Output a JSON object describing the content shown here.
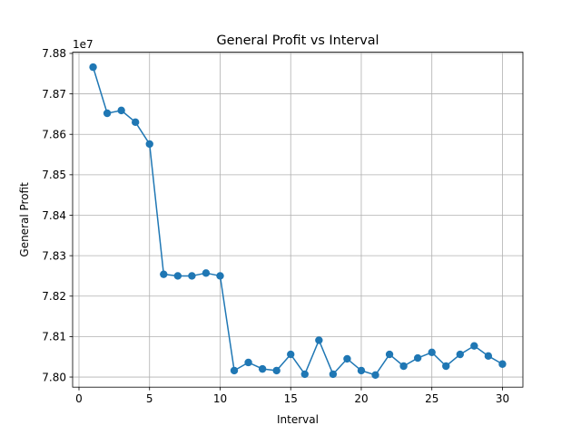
{
  "chart_data": {
    "type": "line",
    "title": "General Profit vs Interval",
    "xlabel": "Interval",
    "ylabel": "General Profit",
    "offset_label": "1e7",
    "xlim": [
      -0.45,
      31.45
    ],
    "ylim": [
      7.7975,
      7.8803
    ],
    "xticks": [
      0,
      5,
      10,
      15,
      20,
      25,
      30
    ],
    "xtick_labels": [
      "0",
      "5",
      "10",
      "15",
      "20",
      "25",
      "30"
    ],
    "yticks": [
      7.8,
      7.81,
      7.82,
      7.83,
      7.84,
      7.85,
      7.86,
      7.87,
      7.88
    ],
    "ytick_labels": [
      "7.80",
      "7.81",
      "7.82",
      "7.83",
      "7.84",
      "7.85",
      "7.86",
      "7.87",
      "7.88"
    ],
    "grid": true,
    "series": [
      {
        "color": "#1f77b4",
        "marker": "circle",
        "x": [
          1,
          2,
          3,
          4,
          5,
          6,
          7,
          8,
          9,
          10,
          11,
          12,
          13,
          14,
          15,
          16,
          17,
          18,
          19,
          20,
          21,
          22,
          23,
          24,
          25,
          26,
          27,
          28,
          29,
          30
        ],
        "y": [
          7.8766,
          7.8652,
          7.8659,
          7.863,
          7.8576,
          7.8254,
          7.825,
          7.825,
          7.8257,
          7.825,
          7.8016,
          7.8036,
          7.802,
          7.8016,
          7.8056,
          7.8007,
          7.8091,
          7.8007,
          7.8045,
          7.8016,
          7.8005,
          7.8056,
          7.8027,
          7.8047,
          7.8061,
          7.8027,
          7.8056,
          7.8077,
          7.8052,
          7.8032
        ]
      }
    ]
  }
}
